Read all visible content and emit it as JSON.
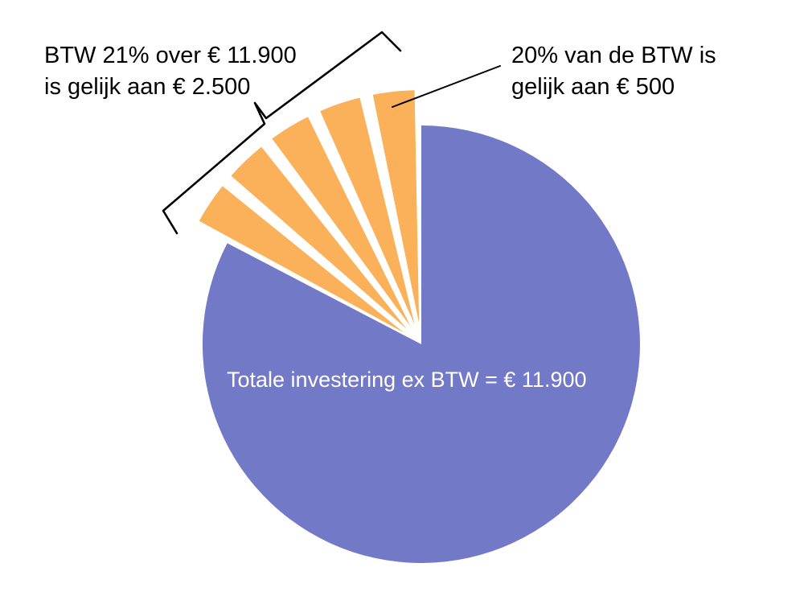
{
  "chart_data": {
    "type": "pie",
    "title": "",
    "legend": "none",
    "grid": false,
    "start_angle_deg": 0,
    "direction": "clockwise",
    "total": 14400,
    "slices": [
      {
        "name": "totale-investering-ex-btw",
        "value": 11900,
        "color": "#7279C7",
        "exploded": false,
        "label": "Totale investering ex BTW = € 11.900"
      },
      {
        "name": "btw-21-procent",
        "value": 2500,
        "color": "#FAB159",
        "exploded": true,
        "sub_slices": 5,
        "sub_slice_value": 500,
        "label": "BTW 21% over € 11.900 is gelijk aan € 2.500"
      }
    ],
    "annotations": [
      {
        "style": "bracket",
        "target": "btw-sub-slices-group",
        "text": "BTW 21% over € 11.900 is gelijk aan € 2.500"
      },
      {
        "style": "leader-line",
        "target": "btw-sub-slice-rightmost",
        "text": "20% van de BTW is gelijk aan € 500"
      },
      {
        "style": "inside-slice",
        "target": "totale-investering-ex-btw",
        "text": "Totale investering ex BTW = € 11.900"
      }
    ]
  },
  "labels": {
    "left": {
      "line1": "BTW 21% over € 11.900",
      "line2": "is gelijk aan € 2.500"
    },
    "right": {
      "line1": "20% van de BTW is",
      "line2": "gelijk aan € 500"
    },
    "center": {
      "text": "Totale investering ex BTW = € 11.900"
    }
  },
  "colors": {
    "pie_main": "#7279C7",
    "pie_btw": "#FAB159",
    "annotation_line": "#000000",
    "label_text": "#000000",
    "center_text": "#FFFFFF",
    "background": "#FFFFFF"
  }
}
